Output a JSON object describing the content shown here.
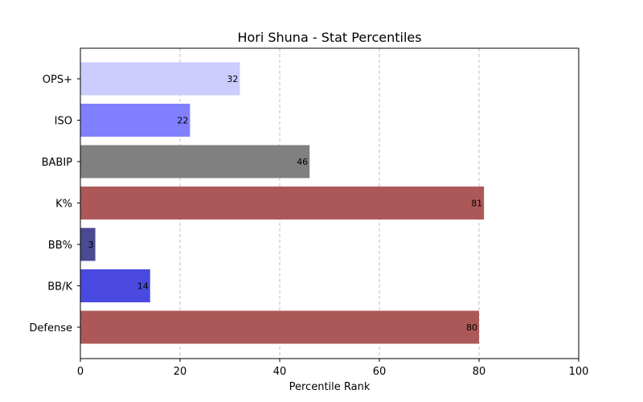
{
  "chart_data": {
    "type": "bar",
    "orientation": "horizontal",
    "title": "Hori Shuna - Stat Percentiles",
    "xlabel": "Percentile Rank",
    "ylabel": "",
    "xlim": [
      0,
      100
    ],
    "x_ticks": [
      0,
      20,
      40,
      60,
      80,
      100
    ],
    "grid": "x-dashed",
    "categories": [
      "OPS+",
      "ISO",
      "BABIP",
      "K%",
      "BB%",
      "BB/K",
      "Defense"
    ],
    "values": [
      32,
      22,
      46,
      81,
      3,
      14,
      80
    ],
    "bar_colors": [
      "#ccccff",
      "#8080ff",
      "#808080",
      "#ad5858",
      "#4a4a92",
      "#4a4ae0",
      "#ad5858"
    ],
    "data_labels": [
      "32",
      "22",
      "46",
      "81",
      "3",
      "14",
      "80"
    ]
  }
}
